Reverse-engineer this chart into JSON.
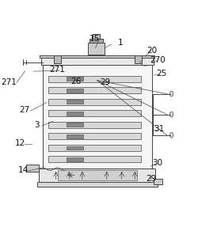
{
  "bg_color": "#ffffff",
  "line_color": "#444444",
  "lw": 0.7,
  "label_fontsize": 7.5
}
